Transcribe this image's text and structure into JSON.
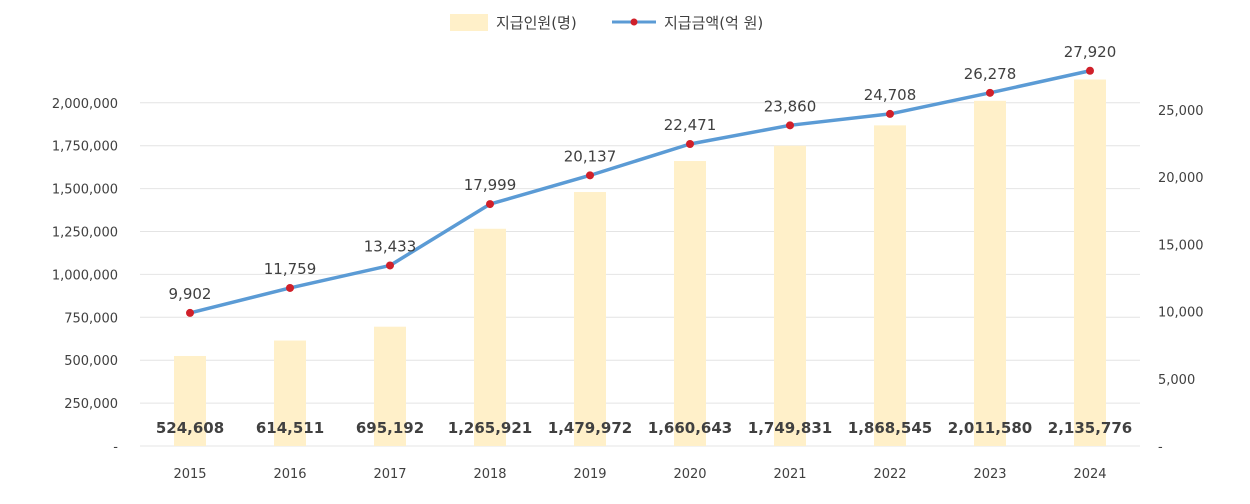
{
  "legend": {
    "bar_label": "지급인원(명)",
    "line_label": "지급금액(억 원)",
    "placement": "top-center"
  },
  "colors": {
    "bar": "#fff0c9",
    "line": "#5b9bd5",
    "marker": "#d0202a",
    "grid": "#e4e4e4",
    "text": "#404040"
  },
  "chart_data": {
    "type": "bar",
    "categories": [
      "2015",
      "2016",
      "2017",
      "2018",
      "2019",
      "2020",
      "2021",
      "2022",
      "2023",
      "2024"
    ],
    "series": [
      {
        "name": "지급인원(명)",
        "type": "bar",
        "axis": "left",
        "values": [
          524608,
          614511,
          695192,
          1265921,
          1479972,
          1660643,
          1749831,
          1868545,
          2011580,
          2135776
        ],
        "value_labels": [
          "524,608",
          "614,511",
          "695,192",
          "1,265,921",
          "1,479,972",
          "1,660,643",
          "1,749,831",
          "1,868,545",
          "2,011,580",
          "2,135,776"
        ]
      },
      {
        "name": "지급금액(억 원)",
        "type": "line",
        "axis": "right",
        "values": [
          9902,
          11759,
          13433,
          17999,
          20137,
          22471,
          23860,
          24708,
          26278,
          27920
        ],
        "value_labels": [
          "9,902",
          "11,759",
          "13,433",
          "17,999",
          "20,137",
          "22,471",
          "23,860",
          "24,708",
          "26,278",
          "27,920"
        ]
      }
    ],
    "y_left": {
      "range": [
        0,
        2250000
      ],
      "ticks": [
        0,
        250000,
        500000,
        750000,
        1000000,
        1250000,
        1500000,
        1750000,
        2000000
      ],
      "tick_labels": [
        "-",
        "250,000",
        "500,000",
        "750,000",
        "1,000,000",
        "1,250,000",
        "1,500,000",
        "1,750,000",
        "2,000,000"
      ]
    },
    "y_right": {
      "range": [
        0,
        27000
      ],
      "ticks": [
        0,
        5000,
        10000,
        15000,
        20000,
        25000
      ],
      "tick_labels": [
        "-",
        "5,000",
        "10,000",
        "15,000",
        "20,000",
        "25,000"
      ]
    },
    "grid": true
  }
}
